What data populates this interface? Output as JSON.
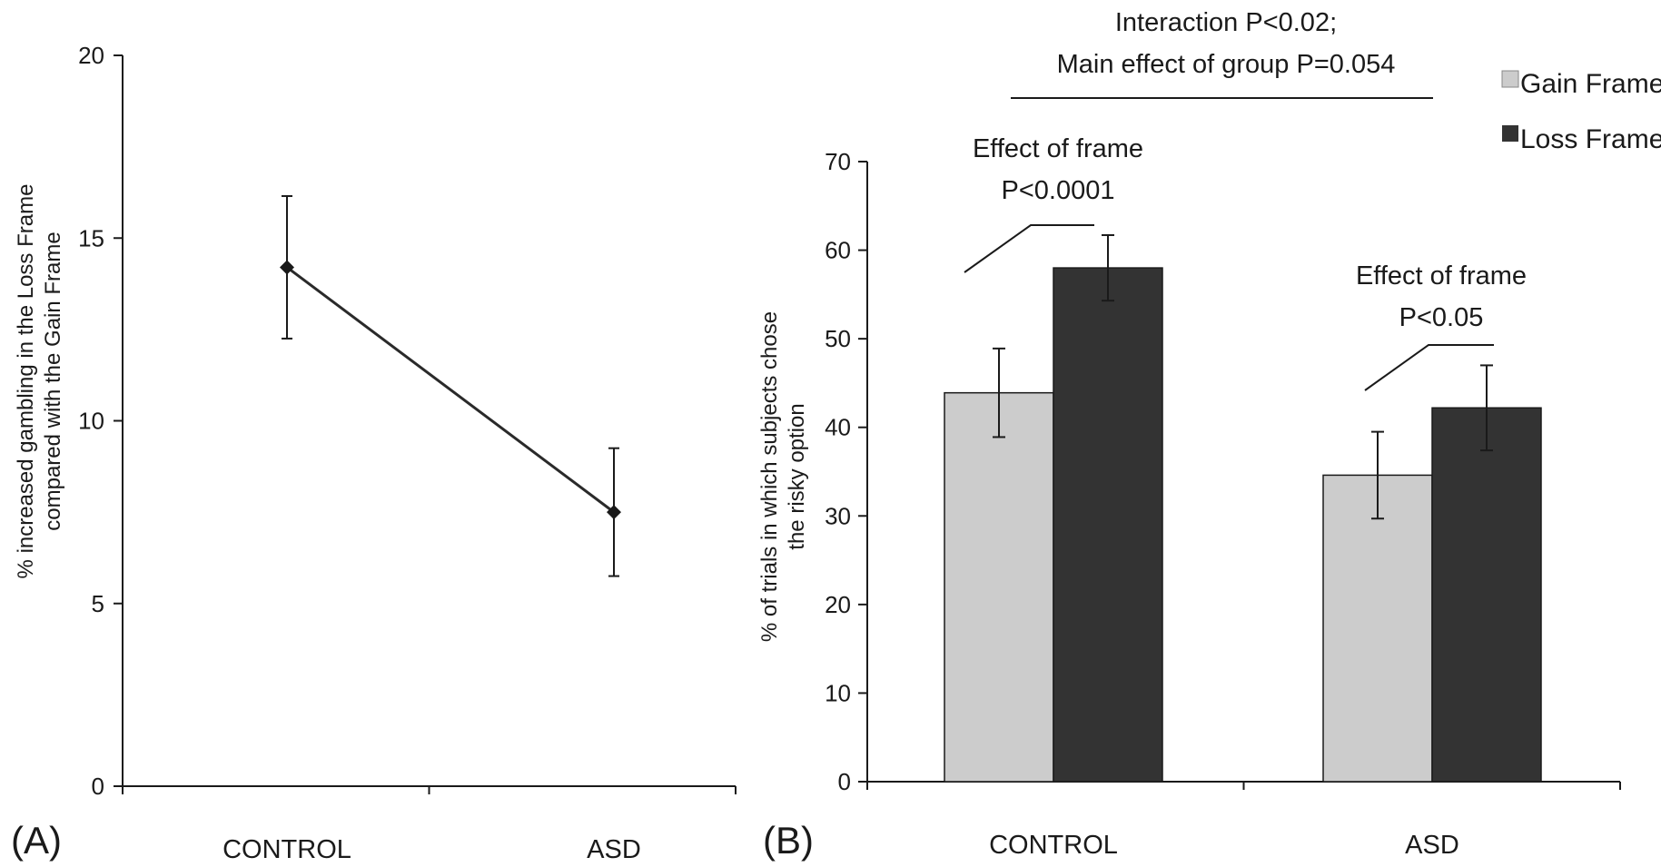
{
  "chart_data": [
    {
      "type": "line",
      "panel_label": "(A)",
      "ylabel_line1": "% increased gambling in the Loss Frame",
      "ylabel_line2": "compared with the Gain Frame",
      "categories": [
        "CONTROL",
        "ASD"
      ],
      "values": [
        14.2,
        7.5
      ],
      "error": [
        1.95,
        1.75
      ],
      "ylim": [
        0,
        20
      ],
      "yticks": [
        0,
        5,
        10,
        15,
        20
      ],
      "colors": {
        "line": "#2a2a2a",
        "marker": "#1a1a1a"
      }
    },
    {
      "type": "bar",
      "panel_label": "(B)",
      "ylabel_line1": "% of trials in which subjects chose",
      "ylabel_line2": "the risky option",
      "categories": [
        "CONTROL",
        "ASD"
      ],
      "series": [
        {
          "name": "Gain Frame",
          "values": [
            43.9,
            34.6
          ],
          "error": [
            5.0,
            4.9
          ],
          "color": "#cccccc"
        },
        {
          "name": "Loss Frame",
          "values": [
            58.0,
            42.2
          ],
          "error": [
            3.7,
            4.8
          ],
          "color": "#333333"
        }
      ],
      "ylim": [
        0,
        70
      ],
      "yticks": [
        0,
        10,
        20,
        30,
        40,
        50,
        60,
        70
      ],
      "legend_position": "top-right",
      "annotations": {
        "interaction_line1": "Interaction P<0.02;",
        "interaction_line2": "Main effect of group P=0.054",
        "control_effect_line1": "Effect of frame",
        "control_effect_line2": "P<0.0001",
        "asd_effect_line1": "Effect of frame",
        "asd_effect_line2": "P<0.05"
      }
    }
  ]
}
